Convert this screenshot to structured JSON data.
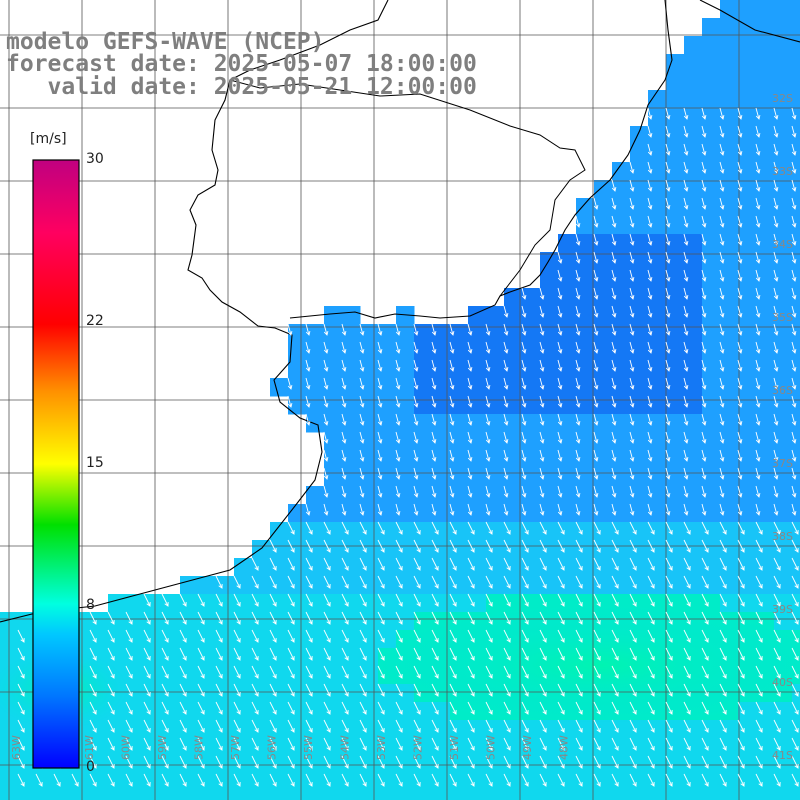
{
  "title": {
    "model": "modelo GEFS-WAVE (NCEP)",
    "forecast": "forecast date: 2025-05-07 18:00:00",
    "valid": "   valid date: 2025-05-21 12:00:00"
  },
  "colorbar": {
    "unit": "[m/s]",
    "ticks": [
      {
        "value": 30,
        "label": "30"
      },
      {
        "value": 22,
        "label": "22"
      },
      {
        "value": 15,
        "label": "15"
      },
      {
        "value": 8,
        "label": "8"
      },
      {
        "value": 0,
        "label": "0"
      }
    ],
    "range": [
      0,
      30
    ],
    "colors": [
      "#0000ff",
      "#0078ff",
      "#00c8ff",
      "#00ffd0",
      "#00ff00",
      "#ffff00",
      "#ff8000",
      "#ff0000",
      "#ff0050",
      "#c00080"
    ]
  },
  "map": {
    "grid": true,
    "lon_labels": [
      "63W",
      "62W",
      "61W",
      "60W",
      "59W",
      "58W",
      "57W",
      "56W",
      "55W",
      "54W",
      "53W",
      "52W",
      "51W",
      "50W",
      "49W",
      "48W"
    ],
    "lat_labels": [
      "32S",
      "33S",
      "34S",
      "35S",
      "36S",
      "37S",
      "38S",
      "39S",
      "40S",
      "41S"
    ],
    "ocean_color_main": "#1ea0ff",
    "ocean_color_deep": "#0a5aee",
    "ocean_color_strong": "#00f0d8",
    "land_color": "#ffffff",
    "vector_color": "#ffffff",
    "wind_direction": "southward / south-east"
  }
}
